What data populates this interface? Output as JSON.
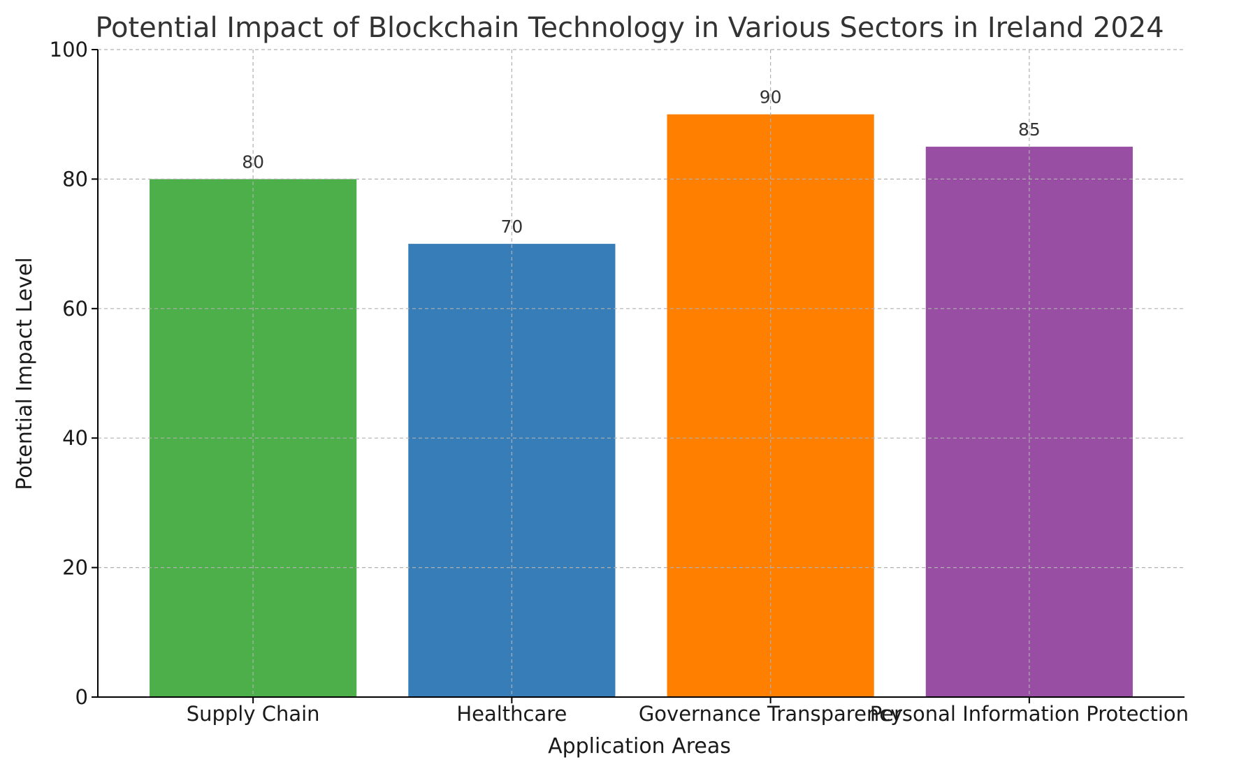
{
  "chart_data": {
    "type": "bar",
    "title": "Potential Impact of Blockchain Technology in Various Sectors in Ireland 2024",
    "xlabel": "Application Areas",
    "ylabel": "Potential Impact Level",
    "categories": [
      "Supply Chain",
      "Healthcare",
      "Governance Transparency",
      "Personal Information Protection"
    ],
    "values": [
      80,
      70,
      90,
      85
    ],
    "colors": [
      "#4daf4a",
      "#377eb8",
      "#ff7f00",
      "#984ea3"
    ],
    "ylim": [
      0,
      100
    ],
    "yticks": [
      0,
      20,
      40,
      60,
      80,
      100
    ],
    "grid": true
  }
}
